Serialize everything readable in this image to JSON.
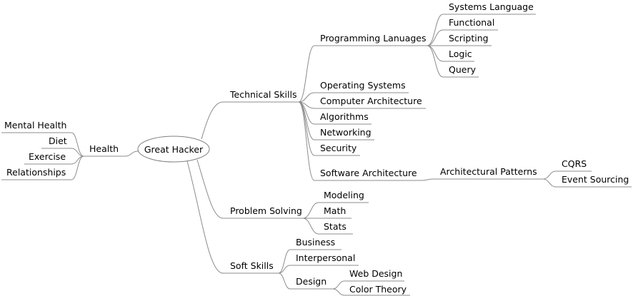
{
  "root": "Great Hacker",
  "nodes": {
    "health": "Health",
    "mental_health": "Mental Health",
    "diet": "Diet",
    "exercise": "Exercise",
    "relationships": "Relationships",
    "technical_skills": "Technical Skills",
    "programming_languages": "Programming Lanuages",
    "systems_language": "Systems Language",
    "functional": "Functional",
    "scripting": "Scripting",
    "logic": "Logic",
    "query": "Query",
    "operating_systems": "Operating Systems",
    "computer_architecture": "Computer Architecture",
    "algorithms": "Algorithms",
    "networking": "Networking",
    "security": "Security",
    "software_architecture": "Software Architecture",
    "architectural_patterns": "Architectural Patterns",
    "cqrs": "CQRS",
    "event_sourcing": "Event Sourcing",
    "problem_solving": "Problem Solving",
    "modeling": "Modeling",
    "math": "Math",
    "stats": "Stats",
    "soft_skills": "Soft Skills",
    "business": "Business",
    "interpersonal": "Interpersonal",
    "design": "Design",
    "web_design": "Web Design",
    "color_theory": "Color Theory"
  }
}
